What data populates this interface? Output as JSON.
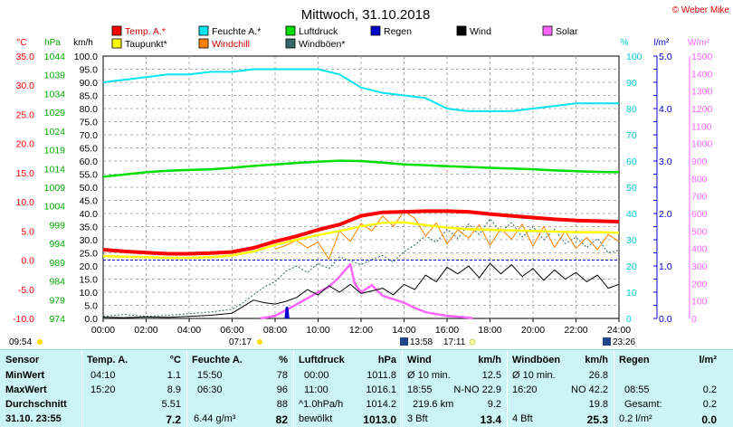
{
  "title": "Mittwoch, 31.10.2018",
  "copyright": "© Weber Mike",
  "legend": [
    {
      "label": "Temp. A.*",
      "color": "#ff0000"
    },
    {
      "label": "Feuchte A.*",
      "color": "#00e5ee"
    },
    {
      "label": "Luftdruck",
      "color": "#00dd00"
    },
    {
      "label": "Regen",
      "color": "#0000cc"
    },
    {
      "label": "Wind",
      "color": "#000000"
    },
    {
      "label": "Solar",
      "color": "#ff66ff"
    },
    {
      "label": "Taupunkt*",
      "color": "#ffff00"
    },
    {
      "label": "Windchill",
      "color": "#ff8000"
    },
    {
      "label": "Windböen*",
      "color": "#336666"
    }
  ],
  "axis_units": {
    "temp": "°C",
    "press": "hPa",
    "wind": "km/h",
    "hum": "%",
    "rain": "l/m²",
    "solar": "W/m²"
  },
  "axes": {
    "temp": {
      "min": -10,
      "max": 35,
      "step": 5,
      "decimals": 1,
      "color": "#ff0000"
    },
    "press": {
      "min": 974,
      "max": 1044,
      "step": 5,
      "decimals": 0,
      "color": "#00aa00"
    },
    "wind": {
      "min": 0,
      "max": 100,
      "step": 5,
      "decimals": 1,
      "color": "#000000"
    },
    "hum": {
      "min": 0,
      "max": 100,
      "step": 10,
      "decimals": 0,
      "color": "#00cccc"
    },
    "rain": {
      "min": 0,
      "max": 5,
      "step": 1,
      "decimals": 1,
      "color": "#0000cc"
    },
    "solar": {
      "min": 0,
      "max": 1500,
      "step": 100,
      "decimals": 0,
      "color": "#ff66ff"
    }
  },
  "time_ticks": [
    "00:00",
    "02:00",
    "04:00",
    "06:00",
    "08:00",
    "10:00",
    "12:00",
    "14:00",
    "16:00",
    "18:00",
    "20:00",
    "22:00",
    "24:00"
  ],
  "sun_times": {
    "sunrise": "07:17",
    "sunset": "17:11"
  },
  "moon_times": {
    "left": "09:54",
    "rise": "13:58",
    "set": "23:26"
  },
  "chart_data": {
    "type": "line",
    "x_unit": "hours",
    "series": [
      {
        "name": "Temp. A.*",
        "axis": "temp",
        "points": [
          [
            0,
            1.8
          ],
          [
            1,
            1.5
          ],
          [
            2,
            1.3
          ],
          [
            3,
            1.1
          ],
          [
            4,
            1.1
          ],
          [
            5,
            1.2
          ],
          [
            6,
            1.4
          ],
          [
            7,
            2.1
          ],
          [
            8,
            3.2
          ],
          [
            9,
            4.1
          ],
          [
            10,
            5.2
          ],
          [
            11,
            6.1
          ],
          [
            12,
            7.6
          ],
          [
            13,
            8.2
          ],
          [
            14,
            8.3
          ],
          [
            15,
            8.4
          ],
          [
            16,
            8.4
          ],
          [
            17,
            8.3
          ],
          [
            18,
            7.9
          ],
          [
            19,
            7.6
          ],
          [
            20,
            7.3
          ],
          [
            21,
            7.0
          ],
          [
            22,
            6.8
          ],
          [
            23,
            6.7
          ],
          [
            24,
            6.6
          ]
        ]
      },
      {
        "name": "Taupunkt*",
        "axis": "temp",
        "points": [
          [
            0,
            0.7
          ],
          [
            1,
            0.6
          ],
          [
            2,
            0.5
          ],
          [
            3,
            0.4
          ],
          [
            4,
            0.4
          ],
          [
            5,
            0.5
          ],
          [
            6,
            0.8
          ],
          [
            7,
            1.5
          ],
          [
            8,
            2.6
          ],
          [
            9,
            3.5
          ],
          [
            10,
            4.3
          ],
          [
            11,
            5.0
          ],
          [
            12,
            5.8
          ],
          [
            13,
            6.4
          ],
          [
            14,
            6.5
          ],
          [
            15,
            6.0
          ],
          [
            16,
            5.6
          ],
          [
            17,
            5.3
          ],
          [
            18,
            5.2
          ],
          [
            19,
            5.1
          ],
          [
            20,
            5.0
          ],
          [
            21,
            4.9
          ],
          [
            22,
            4.8
          ],
          [
            23,
            4.8
          ],
          [
            24,
            4.7
          ]
        ]
      },
      {
        "name": "Feuchte A.*",
        "axis": "hum",
        "points": [
          [
            0,
            90
          ],
          [
            1,
            91
          ],
          [
            2,
            92
          ],
          [
            3,
            93
          ],
          [
            4,
            93
          ],
          [
            5,
            94
          ],
          [
            6,
            94
          ],
          [
            7,
            95
          ],
          [
            8,
            95
          ],
          [
            9,
            95
          ],
          [
            10,
            95
          ],
          [
            11,
            93
          ],
          [
            12,
            88
          ],
          [
            13,
            86
          ],
          [
            14,
            85
          ],
          [
            15,
            84
          ],
          [
            16,
            80
          ],
          [
            17,
            79
          ],
          [
            18,
            79
          ],
          [
            19,
            79
          ],
          [
            20,
            80
          ],
          [
            21,
            81
          ],
          [
            22,
            82
          ],
          [
            23,
            82
          ],
          [
            24,
            82
          ]
        ]
      },
      {
        "name": "Luftdruck",
        "axis": "press",
        "points": [
          [
            0,
            1011.8
          ],
          [
            1,
            1012.4
          ],
          [
            2,
            1013.0
          ],
          [
            3,
            1013.4
          ],
          [
            4,
            1013.6
          ],
          [
            5,
            1013.8
          ],
          [
            6,
            1014.2
          ],
          [
            7,
            1014.7
          ],
          [
            8,
            1015.1
          ],
          [
            9,
            1015.5
          ],
          [
            10,
            1015.8
          ],
          [
            11,
            1016.1
          ],
          [
            12,
            1016.0
          ],
          [
            13,
            1015.6
          ],
          [
            14,
            1015.1
          ],
          [
            15,
            1014.9
          ],
          [
            16,
            1014.6
          ],
          [
            17,
            1014.4
          ],
          [
            18,
            1014.2
          ],
          [
            19,
            1014.0
          ],
          [
            20,
            1013.8
          ],
          [
            21,
            1013.5
          ],
          [
            22,
            1013.3
          ],
          [
            23,
            1013.1
          ],
          [
            24,
            1013.0
          ]
        ]
      },
      {
        "name": "Windchill",
        "axis": "temp",
        "points": [
          [
            8,
            1.9
          ],
          [
            8.5,
            2.5
          ],
          [
            9,
            3.4
          ],
          [
            9.5,
            2.1
          ],
          [
            10,
            3.1
          ],
          [
            10.5,
            0.2
          ],
          [
            11,
            5.0
          ],
          [
            11.5,
            3.2
          ],
          [
            12,
            6.3
          ],
          [
            12.5,
            5.0
          ],
          [
            13,
            7.6
          ],
          [
            13.5,
            5.8
          ],
          [
            14,
            8.4
          ],
          [
            14.5,
            7.2
          ],
          [
            15,
            4.1
          ],
          [
            15.5,
            6.4
          ],
          [
            16,
            2.8
          ],
          [
            16.5,
            5.2
          ],
          [
            17,
            3.8
          ],
          [
            17.5,
            6.1
          ],
          [
            18,
            2.5
          ],
          [
            18.5,
            5.4
          ],
          [
            19,
            3.6
          ],
          [
            19.5,
            6.2
          ],
          [
            20,
            2.4
          ],
          [
            20.5,
            5.8
          ],
          [
            21,
            2.2
          ],
          [
            21.5,
            5.0
          ],
          [
            22,
            2.0
          ],
          [
            22.5,
            3.9
          ],
          [
            23,
            1.8
          ],
          [
            23.5,
            4.4
          ],
          [
            24,
            3.2
          ]
        ]
      },
      {
        "name": "Wind",
        "axis": "wind",
        "points": [
          [
            0,
            0.5
          ],
          [
            1,
            0.3
          ],
          [
            2,
            0.6
          ],
          [
            3,
            0.4
          ],
          [
            4,
            0.8
          ],
          [
            5,
            1.2
          ],
          [
            6,
            2.0
          ],
          [
            6.5,
            4.5
          ],
          [
            7,
            7.0
          ],
          [
            7.5,
            6.0
          ],
          [
            8,
            5.5
          ],
          [
            8.5,
            6.5
          ],
          [
            9,
            8.0
          ],
          [
            9.5,
            11.0
          ],
          [
            10,
            9.0
          ],
          [
            10.5,
            12.5
          ],
          [
            11,
            10.0
          ],
          [
            11.5,
            13.0
          ],
          [
            12,
            9.5
          ],
          [
            12.5,
            10.5
          ],
          [
            13,
            11.5
          ],
          [
            13.5,
            9.0
          ],
          [
            14,
            13.0
          ],
          [
            14.5,
            11.0
          ],
          [
            15,
            16.5
          ],
          [
            15.5,
            14.0
          ],
          [
            16,
            19.5
          ],
          [
            16.5,
            17.0
          ],
          [
            17,
            20.0
          ],
          [
            17.5,
            15.5
          ],
          [
            18,
            21.0
          ],
          [
            18.5,
            17.0
          ],
          [
            19,
            20.5
          ],
          [
            19.5,
            16.0
          ],
          [
            20,
            19.0
          ],
          [
            20.5,
            14.5
          ],
          [
            21,
            18.5
          ],
          [
            21.5,
            15.0
          ],
          [
            22,
            17.5
          ],
          [
            22.5,
            14.0
          ],
          [
            23,
            16.5
          ],
          [
            23.5,
            11.5
          ],
          [
            24,
            13.0
          ]
        ]
      },
      {
        "name": "Windböen*",
        "axis": "wind",
        "points": [
          [
            0,
            0.8
          ],
          [
            1,
            1.5
          ],
          [
            2,
            0.8
          ],
          [
            3,
            1.2
          ],
          [
            4,
            1.8
          ],
          [
            5,
            2.5
          ],
          [
            6,
            3.5
          ],
          [
            6.5,
            6.0
          ],
          [
            7,
            9.0
          ],
          [
            7.5,
            12.0
          ],
          [
            8,
            14.0
          ],
          [
            8.5,
            18.0
          ],
          [
            9,
            20.0
          ],
          [
            9.5,
            17.5
          ],
          [
            10,
            21.0
          ],
          [
            10.5,
            19.0
          ],
          [
            11,
            23.5
          ],
          [
            11.5,
            22.0
          ],
          [
            12,
            20.5
          ],
          [
            12.5,
            22.5
          ],
          [
            13,
            24.0
          ],
          [
            13.5,
            21.5
          ],
          [
            14,
            25.5
          ],
          [
            14.5,
            28.0
          ],
          [
            15,
            31.5
          ],
          [
            15.5,
            29.0
          ],
          [
            16,
            34.0
          ],
          [
            16.5,
            30.5
          ],
          [
            17,
            36.0
          ],
          [
            17.5,
            32.0
          ],
          [
            18,
            38.0
          ],
          [
            18.5,
            33.0
          ],
          [
            19,
            36.5
          ],
          [
            19.5,
            31.0
          ],
          [
            20,
            35.0
          ],
          [
            20.5,
            30.0
          ],
          [
            21,
            34.0
          ],
          [
            21.5,
            28.5
          ],
          [
            22,
            31.0
          ],
          [
            22.5,
            27.0
          ],
          [
            23,
            30.5
          ],
          [
            23.5,
            25.0
          ],
          [
            24,
            26.0
          ]
        ]
      },
      {
        "name": "Solar",
        "axis": "solar",
        "points": [
          [
            7.3,
            0
          ],
          [
            8,
            15
          ],
          [
            9,
            80
          ],
          [
            10,
            150
          ],
          [
            10.5,
            180
          ],
          [
            11,
            240
          ],
          [
            11.5,
            310
          ],
          [
            11.7,
            200
          ],
          [
            12,
            150
          ],
          [
            12.5,
            190
          ],
          [
            13,
            130
          ],
          [
            13.5,
            110
          ],
          [
            14,
            90
          ],
          [
            14.5,
            60
          ],
          [
            15,
            35
          ],
          [
            16,
            15
          ],
          [
            17,
            5
          ],
          [
            17.2,
            0
          ]
        ]
      },
      {
        "name": "Regen",
        "axis": "rain",
        "points": [
          [
            8.5,
            0
          ],
          [
            8.55,
            0.2
          ],
          [
            8.6,
            0
          ]
        ]
      }
    ]
  },
  "panel": {
    "headers": [
      {
        "label": "Sensor"
      },
      {
        "label": "Temp. A.",
        "unit": "°C"
      },
      {
        "label": "Feuchte A.",
        "unit": "%"
      },
      {
        "label": "Luftdruck",
        "unit": "hPa"
      },
      {
        "label": "Wind",
        "unit": "km/h"
      },
      {
        "label": "Windböen",
        "unit": "km/h"
      },
      {
        "label": "Regen",
        "unit": "l/m²"
      }
    ],
    "rows": [
      {
        "label": "MinWert",
        "temp": [
          "04:10",
          "1.1"
        ],
        "hum": [
          "15:50",
          "78"
        ],
        "press": [
          "00:00",
          "1011.8"
        ],
        "wind": [
          "Ø 10 min.",
          "12.5"
        ],
        "gust": [
          "Ø 10 min.",
          "26.8"
        ],
        "rain": [
          "",
          ""
        ]
      },
      {
        "label": "MaxWert",
        "temp": [
          "15:20",
          "8.9"
        ],
        "hum": [
          "06:30",
          "96"
        ],
        "press": [
          "11:00",
          "1016.1"
        ],
        "wind": [
          "18:55",
          "N-NO 22.9"
        ],
        "gust": [
          "16:20",
          "NO 42.2"
        ],
        "rain": [
          "08:55",
          "0.2"
        ]
      },
      {
        "label": "Durchschnitt",
        "temp": [
          "",
          "5.51"
        ],
        "hum": [
          "",
          "88"
        ],
        "press": [
          "^1.0hPa/h",
          "1014.2"
        ],
        "wind": [
          "219.6 km",
          "9.2"
        ],
        "gust": [
          "",
          "19.8"
        ],
        "rain": [
          "Gesamt:",
          "0.2"
        ]
      },
      {
        "label": "31.10. 23:55",
        "temp": [
          "",
          "7.2"
        ],
        "hum": [
          "6.44 g/m³",
          "82"
        ],
        "press": [
          "bewölkt",
          "1013.0"
        ],
        "wind": [
          "3 Bft",
          "13.4"
        ],
        "gust": [
          "4 Bft",
          "25.3"
        ],
        "rain": [
          "0.2 l/m²",
          "0.0"
        ]
      }
    ]
  }
}
